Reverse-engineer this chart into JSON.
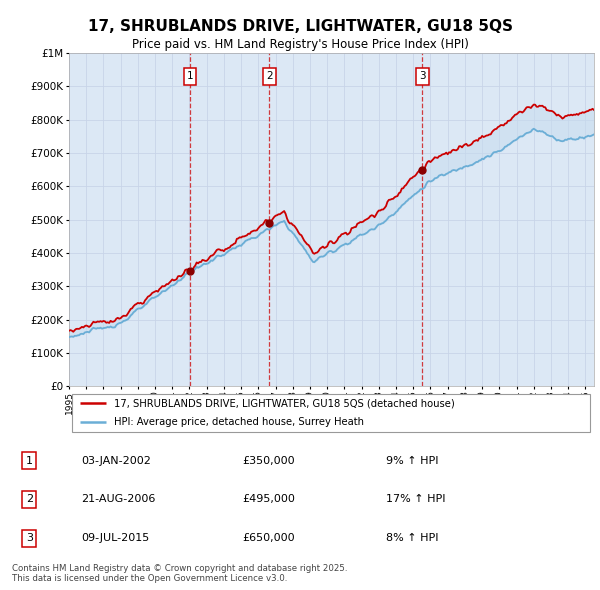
{
  "title_line1": "17, SHRUBLANDS DRIVE, LIGHTWATER, GU18 5QS",
  "title_line2": "Price paid vs. HM Land Registry's House Price Index (HPI)",
  "legend_label1": "17, SHRUBLANDS DRIVE, LIGHTWATER, GU18 5QS (detached house)",
  "legend_label2": "HPI: Average price, detached house, Surrey Heath",
  "footer": "Contains HM Land Registry data © Crown copyright and database right 2025.\nThis data is licensed under the Open Government Licence v3.0.",
  "transactions": [
    {
      "num": 1,
      "date": "03-JAN-2002",
      "price": 350000,
      "hpi_pct": "9%",
      "year": 2002.03
    },
    {
      "num": 2,
      "date": "21-AUG-2006",
      "price": 495000,
      "hpi_pct": "17%",
      "year": 2006.64
    },
    {
      "num": 3,
      "date": "09-JUL-2015",
      "price": 650000,
      "hpi_pct": "8%",
      "year": 2015.52
    }
  ],
  "ylim": [
    0,
    1000000
  ],
  "yticks": [
    0,
    100000,
    200000,
    300000,
    400000,
    500000,
    600000,
    700000,
    800000,
    900000,
    1000000
  ],
  "ytick_labels": [
    "£0",
    "£100K",
    "£200K",
    "£300K",
    "£400K",
    "£500K",
    "£600K",
    "£700K",
    "£800K",
    "£900K",
    "£1M"
  ],
  "hpi_color": "#6baed6",
  "price_color": "#cc0000",
  "fill_color": "#c6dbef",
  "grid_color": "#c8d4e8",
  "plot_bg_color": "#dce8f5"
}
